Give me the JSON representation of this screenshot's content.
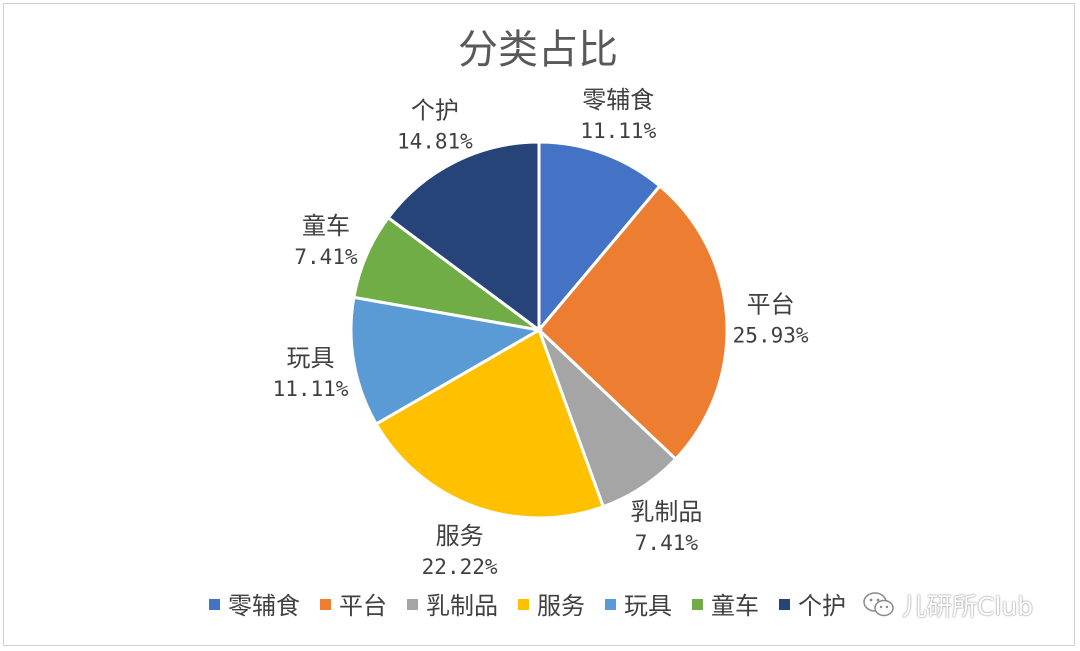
{
  "chart_data": {
    "type": "pie",
    "title": "分类占比",
    "slices": [
      {
        "name": "零辅食",
        "value": 11.11,
        "label": "11.11%",
        "color": "#4472C4"
      },
      {
        "name": "平台",
        "value": 25.93,
        "label": "25.93%",
        "color": "#ED7D31"
      },
      {
        "name": "乳制品",
        "value": 7.41,
        "label": "7.41%",
        "color": "#A5A5A5"
      },
      {
        "name": "服务",
        "value": 22.22,
        "label": "22.22%",
        "color": "#FFC000"
      },
      {
        "name": "玩具",
        "value": 11.11,
        "label": "11.11%",
        "color": "#5B9BD5"
      },
      {
        "name": "童车",
        "value": 7.41,
        "label": "7.41%",
        "color": "#70AD47"
      },
      {
        "name": "个护",
        "value": 14.81,
        "label": "14.81%",
        "color": "#264478"
      }
    ],
    "legend": {
      "position": "bottom",
      "items": [
        "零辅食",
        "平台",
        "乳制品",
        "服务",
        "玩具",
        "童车",
        "个护"
      ]
    }
  },
  "watermark": {
    "text": "儿研所Club",
    "icon": "wechat-icon"
  }
}
